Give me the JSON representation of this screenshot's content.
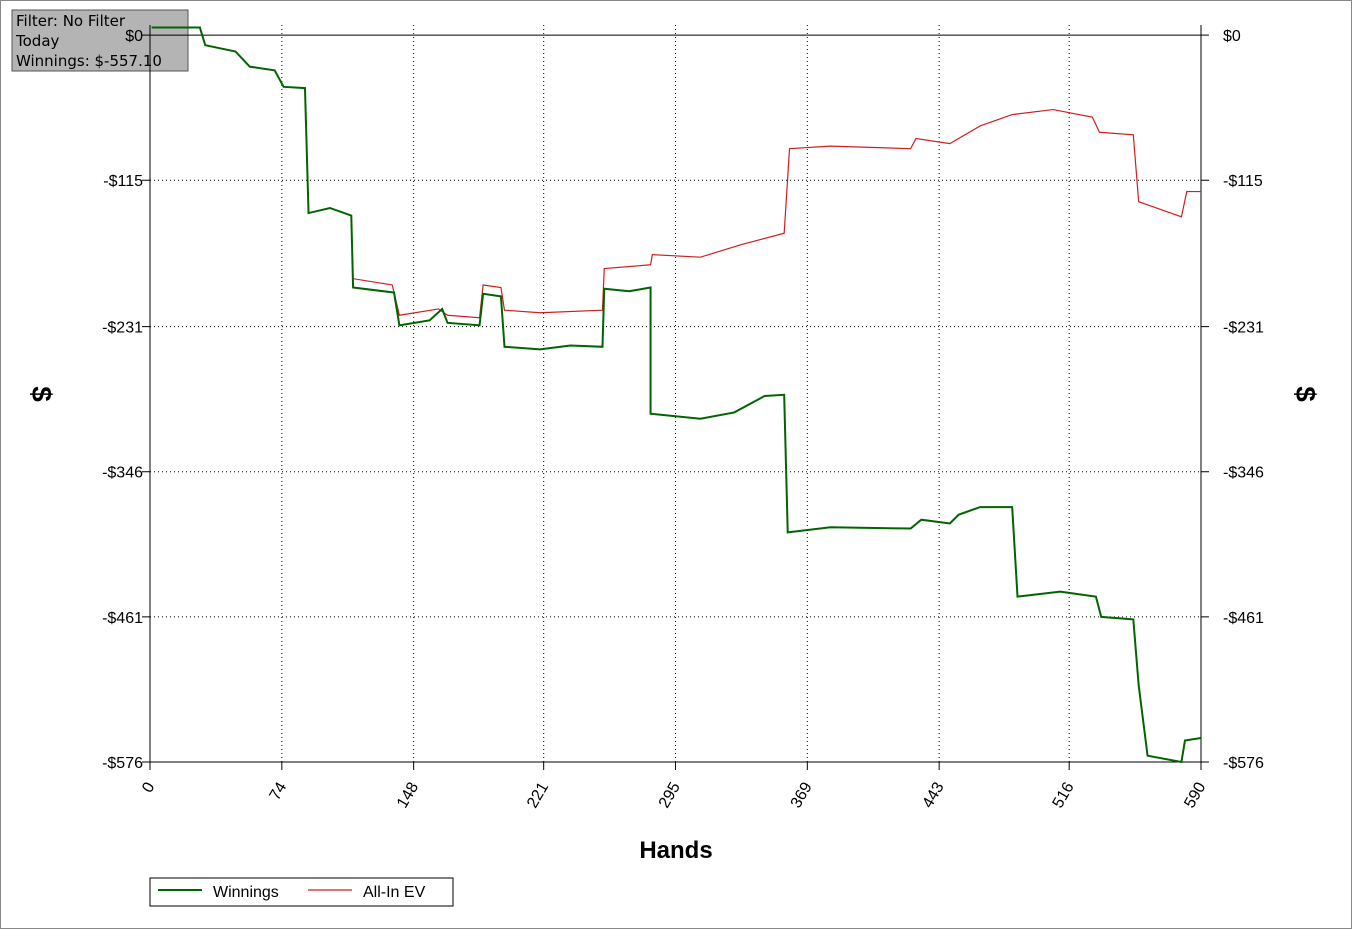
{
  "chart_data": {
    "type": "line",
    "annotations": [
      "Filter: No Filter",
      "Today",
      "Winnings: $-557.10"
    ],
    "xlabel": "Hands",
    "ylabel": "$",
    "xlim": [
      0,
      590
    ],
    "ylim": [
      -576,
      8
    ],
    "xticks": [
      0,
      74,
      148,
      221,
      295,
      369,
      443,
      516,
      590
    ],
    "yticks": [
      {
        "value": 0,
        "label": "$0"
      },
      {
        "value": -115,
        "label": "-$115"
      },
      {
        "value": -231,
        "label": "-$231"
      },
      {
        "value": -346,
        "label": "-$346"
      },
      {
        "value": -461,
        "label": "-$461"
      },
      {
        "value": -576,
        "label": "-$576"
      }
    ],
    "grid": true,
    "legend": "bottom-left",
    "series": [
      {
        "name": "Winnings",
        "color": "#006400",
        "x": [
          1,
          28,
          31,
          48,
          56,
          70,
          75,
          87,
          89,
          101,
          113,
          114,
          137,
          140,
          157,
          164,
          167,
          185,
          187,
          197,
          199,
          219,
          236,
          254,
          255,
          269,
          281,
          281,
          309,
          328,
          345,
          356,
          358,
          382,
          427,
          433,
          449,
          454,
          466,
          484,
          487,
          511,
          531,
          534,
          552,
          555,
          560,
          579,
          581,
          590
        ],
        "values": [
          6,
          6,
          -8,
          -13,
          -25,
          -28,
          -41,
          -42,
          -141,
          -137,
          -143,
          -200,
          -204,
          -230,
          -226,
          -217,
          -228,
          -230,
          -205,
          -207,
          -247,
          -249,
          -246,
          -247,
          -201,
          -203,
          -200,
          -300,
          -304,
          -299,
          -286,
          -285,
          -394,
          -390,
          -391,
          -384,
          -387,
          -380,
          -374,
          -374,
          -445,
          -441,
          -445,
          -461,
          -463,
          -515,
          -571,
          -576,
          -559,
          -557
        ]
      },
      {
        "name": "All-In EV",
        "color": "#cc2020",
        "x": [
          1,
          28,
          31,
          48,
          56,
          70,
          75,
          87,
          89,
          101,
          113,
          114,
          136,
          140,
          162,
          167,
          185,
          187,
          197,
          199,
          219,
          254,
          255,
          281,
          282,
          309,
          332,
          356,
          359,
          382,
          427,
          430,
          449,
          466,
          484,
          507,
          529,
          533,
          552,
          555,
          579,
          582,
          590
        ],
        "values": [
          6,
          6,
          -8,
          -13,
          -25,
          -28,
          -41,
          -42,
          -141,
          -137,
          -143,
          -193,
          -198,
          -222,
          -217,
          -222,
          -224,
          -198,
          -200,
          -218,
          -220,
          -218,
          -185,
          -182,
          -174,
          -176,
          -166,
          -157,
          -90,
          -88,
          -90,
          -82,
          -86,
          -72,
          -63,
          -59,
          -65,
          -77,
          -79,
          -132,
          -144,
          -124,
          -124
        ]
      }
    ]
  }
}
